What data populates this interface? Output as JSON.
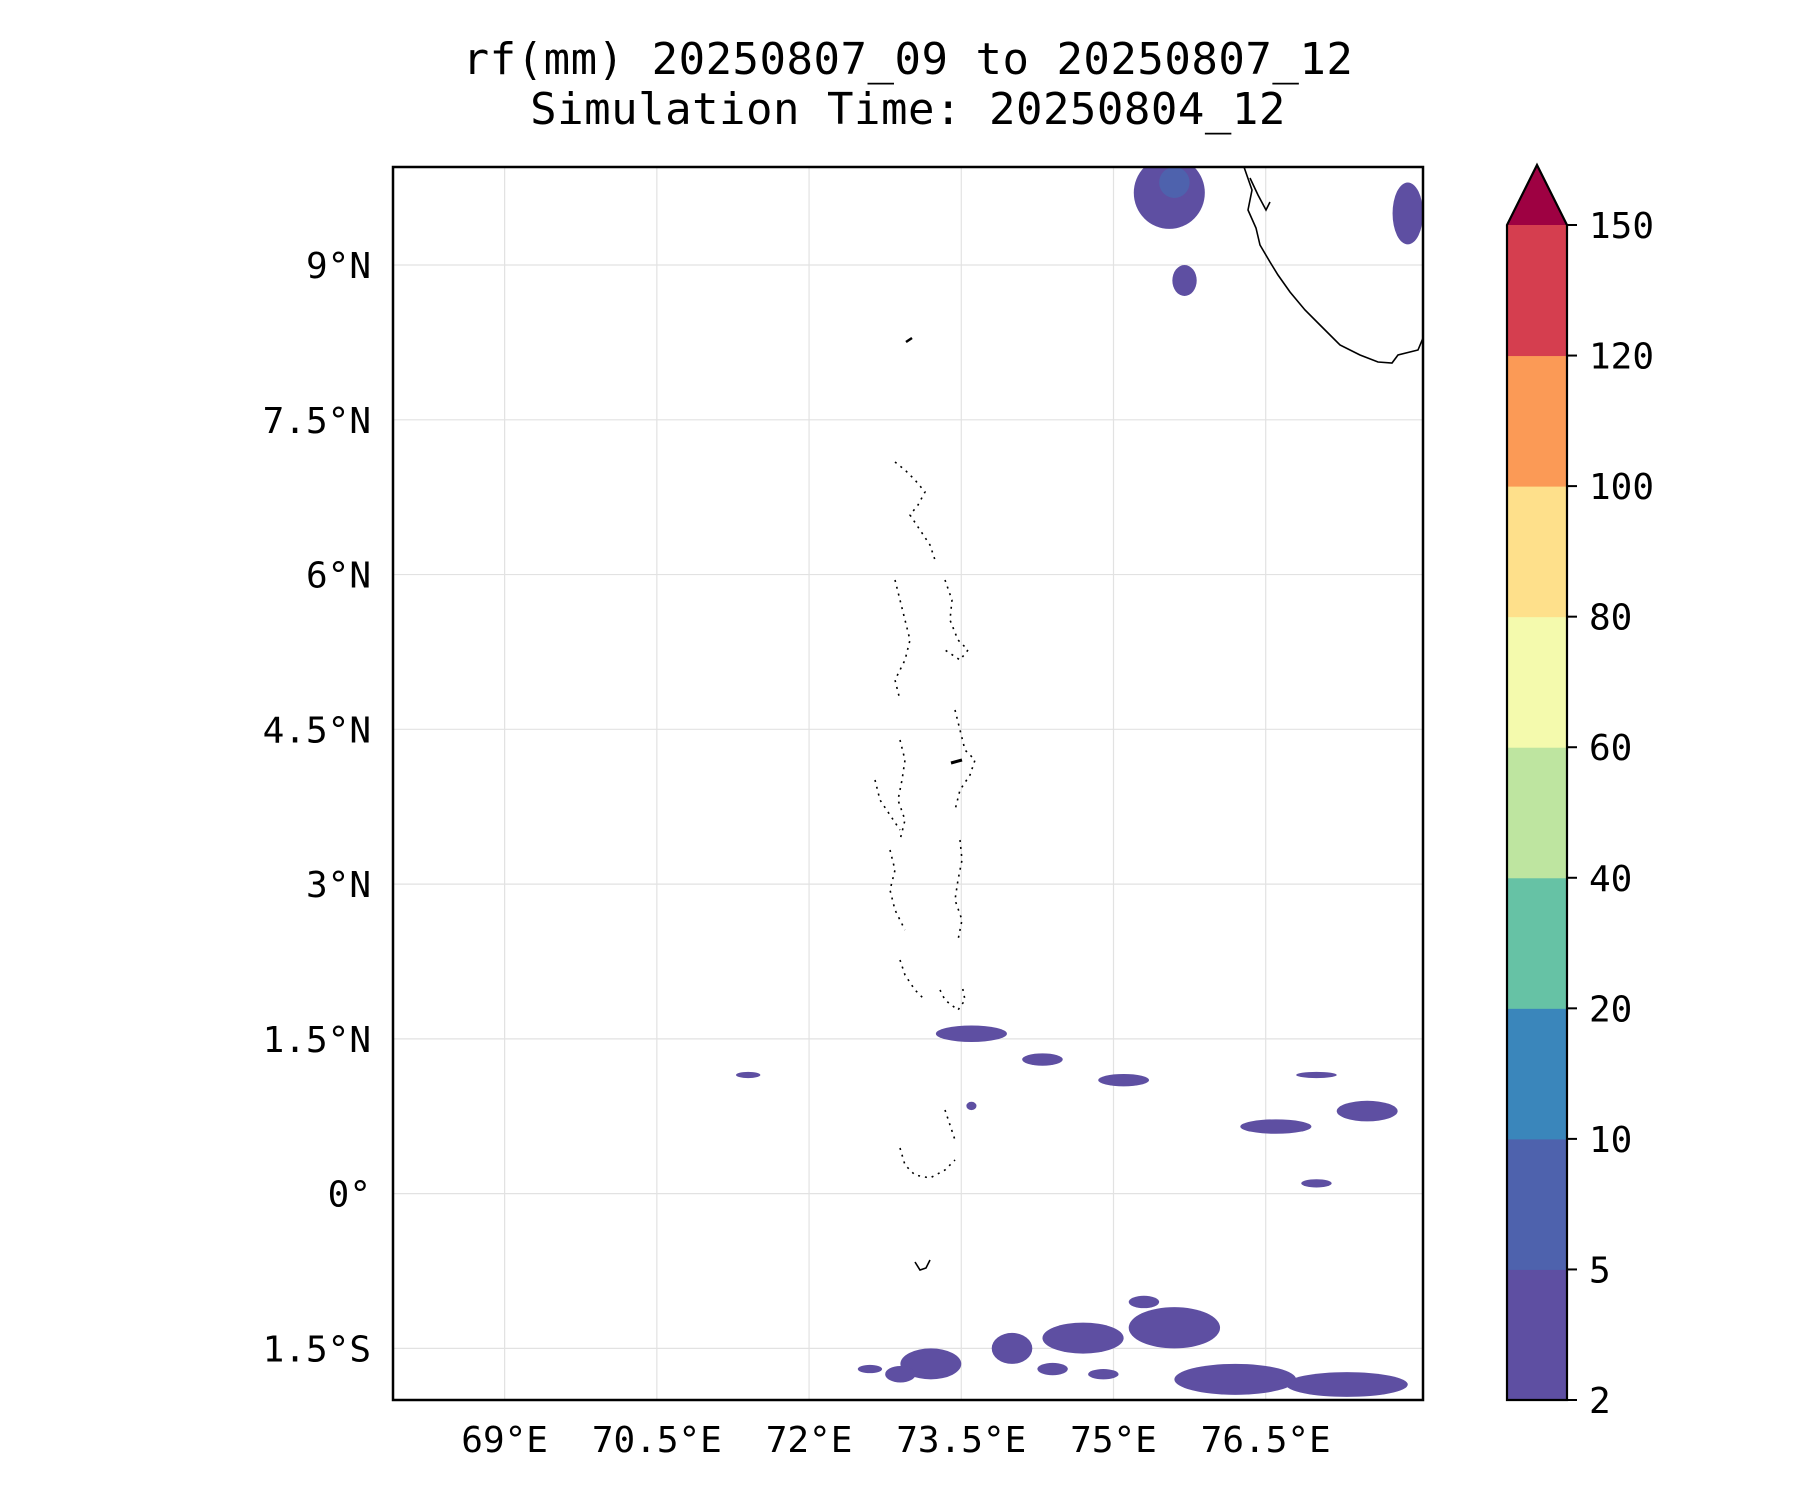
{
  "title": {
    "line1": "rf(mm) 20250807_09 to 20250807_12",
    "line2": "Simulation Time: 20250804_12"
  },
  "map": {
    "projection": "PlateCarree",
    "lon_range": [
      67.9,
      78.05
    ],
    "lat_range": [
      -2.0,
      9.95
    ],
    "gridlines": true,
    "coastlines": true,
    "region_note": "Maldives archipelago; southern tip of India at top-right",
    "x_ticks": [
      {
        "value": 69.0,
        "label": "69°E"
      },
      {
        "value": 70.5,
        "label": "70.5°E"
      },
      {
        "value": 72.0,
        "label": "72°E"
      },
      {
        "value": 73.5,
        "label": "73.5°E"
      },
      {
        "value": 75.0,
        "label": "75°E"
      },
      {
        "value": 76.5,
        "label": "76.5°E"
      }
    ],
    "y_ticks": [
      {
        "value": 9.0,
        "label": "9°N"
      },
      {
        "value": 7.5,
        "label": "7.5°N"
      },
      {
        "value": 6.0,
        "label": "6°N"
      },
      {
        "value": 4.5,
        "label": "4.5°N"
      },
      {
        "value": 3.0,
        "label": "3°N"
      },
      {
        "value": 1.5,
        "label": "1.5°N"
      },
      {
        "value": 0.0,
        "label": "0°"
      },
      {
        "value": -1.5,
        "label": "1.5°S"
      }
    ],
    "rain_areas": [
      {
        "lon": 75.55,
        "lat": 9.7,
        "rlon": 0.35,
        "rlat": 0.35,
        "level": 0
      },
      {
        "lon": 75.6,
        "lat": 9.8,
        "rlon": 0.15,
        "rlat": 0.15,
        "level": 1
      },
      {
        "lon": 77.9,
        "lat": 9.5,
        "rlon": 0.15,
        "rlat": 0.3,
        "level": 0
      },
      {
        "lon": 75.7,
        "lat": 8.85,
        "rlon": 0.12,
        "rlat": 0.15,
        "level": 0
      },
      {
        "lon": 73.6,
        "lat": 1.55,
        "rlon": 0.35,
        "rlat": 0.08,
        "level": 0
      },
      {
        "lon": 74.3,
        "lat": 1.3,
        "rlon": 0.2,
        "rlat": 0.06,
        "level": 0
      },
      {
        "lon": 75.1,
        "lat": 1.1,
        "rlon": 0.25,
        "rlat": 0.06,
        "level": 0
      },
      {
        "lon": 76.6,
        "lat": 0.65,
        "rlon": 0.35,
        "rlat": 0.07,
        "level": 0
      },
      {
        "lon": 77.5,
        "lat": 0.8,
        "rlon": 0.3,
        "rlat": 0.1,
        "level": 0
      },
      {
        "lon": 71.4,
        "lat": 1.15,
        "rlon": 0.12,
        "rlat": 0.03,
        "level": 0
      },
      {
        "lon": 77.0,
        "lat": 1.15,
        "rlon": 0.2,
        "rlat": 0.03,
        "level": 0
      },
      {
        "lon": 77.0,
        "lat": 0.1,
        "rlon": 0.15,
        "rlat": 0.04,
        "level": 0
      },
      {
        "lon": 73.6,
        "lat": 0.85,
        "rlon": 0.05,
        "rlat": 0.04,
        "level": 0
      },
      {
        "lon": 74.7,
        "lat": -1.4,
        "rlon": 0.4,
        "rlat": 0.15,
        "level": 0
      },
      {
        "lon": 75.6,
        "lat": -1.3,
        "rlon": 0.45,
        "rlat": 0.2,
        "level": 0
      },
      {
        "lon": 73.2,
        "lat": -1.65,
        "rlon": 0.3,
        "rlat": 0.15,
        "level": 0
      },
      {
        "lon": 74.0,
        "lat": -1.5,
        "rlon": 0.2,
        "rlat": 0.15,
        "level": 0
      },
      {
        "lon": 76.2,
        "lat": -1.8,
        "rlon": 0.6,
        "rlat": 0.15,
        "level": 0
      },
      {
        "lon": 77.3,
        "lat": -1.85,
        "rlon": 0.6,
        "rlat": 0.12,
        "level": 0
      },
      {
        "lon": 72.9,
        "lat": -1.75,
        "rlon": 0.15,
        "rlat": 0.08,
        "level": 0
      },
      {
        "lon": 72.6,
        "lat": -1.7,
        "rlon": 0.12,
        "rlat": 0.04,
        "level": 0
      },
      {
        "lon": 74.4,
        "lat": -1.7,
        "rlon": 0.15,
        "rlat": 0.06,
        "level": 0
      },
      {
        "lon": 74.9,
        "lat": -1.75,
        "rlon": 0.15,
        "rlat": 0.05,
        "level": 0
      },
      {
        "lon": 75.3,
        "lat": -1.05,
        "rlon": 0.15,
        "rlat": 0.06,
        "level": 0
      }
    ]
  },
  "colorbar": {
    "colors": [
      "#5e4fa2",
      "#4e62ad",
      "#3a86bb",
      "#66c2a5",
      "#bee5a0",
      "#f4faad",
      "#fee08b",
      "#fb9a56",
      "#d53e4f"
    ],
    "extend_color": "#9e0142",
    "extend": "max",
    "labels": [
      "2",
      "5",
      "10",
      "20",
      "40",
      "60",
      "80",
      "100",
      "120",
      "150"
    ]
  }
}
